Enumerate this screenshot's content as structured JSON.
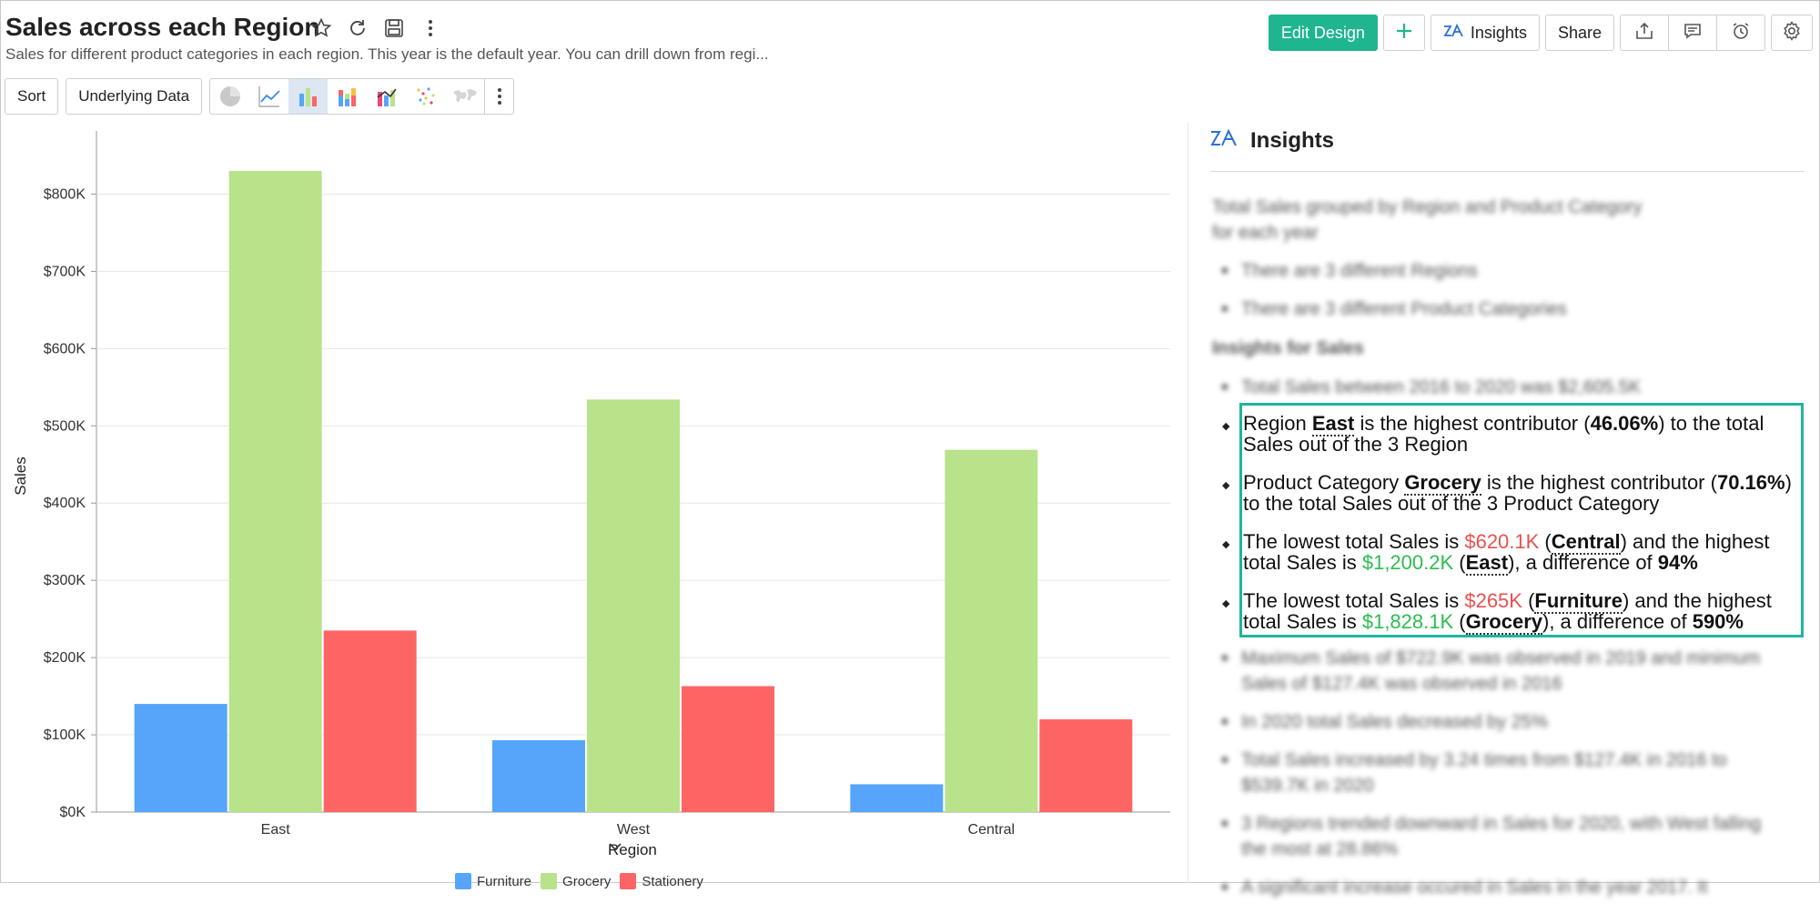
{
  "header": {
    "title": "Sales across each Region",
    "subtitle": "Sales for different product categories in each region. This year is the default year. You can drill down from regi...",
    "icons": [
      "star-icon",
      "refresh-icon",
      "save-icon",
      "more-vertical-icon"
    ]
  },
  "top_actions": {
    "edit_design": "Edit Design",
    "insights": "Insights",
    "share": "Share",
    "icons": [
      "plus-icon",
      "insights-icon",
      "export-icon",
      "comment-icon",
      "alarm-icon",
      "settings-icon"
    ]
  },
  "toolbar": {
    "sort": "Sort",
    "underlying_data": "Underlying Data",
    "chart_types": [
      "pie-chart-icon",
      "line-chart-icon",
      "bar-chart-icon",
      "stacked-bar-icon",
      "combo-chart-icon",
      "scatter-chart-icon",
      "map-chart-icon"
    ],
    "active_chart_type": "bar-chart-icon"
  },
  "chart_data": {
    "type": "bar",
    "categories": [
      "East",
      "West",
      "Central"
    ],
    "series": [
      {
        "name": "Furniture",
        "color": "#56a5fb",
        "values": [
          140000,
          93000,
          36000
        ]
      },
      {
        "name": "Grocery",
        "color": "#b8e38a",
        "values": [
          830000,
          534000,
          469000
        ]
      },
      {
        "name": "Stationery",
        "color": "#fd6565",
        "values": [
          235000,
          163000,
          120000
        ]
      }
    ],
    "xlabel": "Region",
    "ylabel": "Sales",
    "ylim": [
      0,
      870000
    ],
    "yticks": [
      0,
      100000,
      200000,
      300000,
      400000,
      500000,
      600000,
      700000,
      800000
    ],
    "ytick_labels": [
      "$0K",
      "$100K",
      "$200K",
      "$300K",
      "$400K",
      "$500K",
      "$600K",
      "$700K",
      "$800K"
    ],
    "grid": true,
    "legend": "bottom"
  },
  "insights": {
    "title": "Insights",
    "intro": "Total Sales grouped by Region and Product Category for each year",
    "summary": [
      "There are 3 different Regions",
      "There are 3 different Product Categories"
    ],
    "section_title": "Insights for Sales",
    "total_line": "Total Sales between 2016 to 2020 was $2,605.5K",
    "highlighted": {
      "i1": {
        "prefix": "Region ",
        "entity": "East",
        "mid": " is the highest contributor (",
        "pct": "46.06%",
        "suffix": ") to the total Sales out of the 3 Region"
      },
      "i2": {
        "prefix": "Product Category ",
        "entity": "Grocery",
        "mid": " is the highest contributor (",
        "pct": "70.16%",
        "suffix": ") to the total Sales out of the 3 Product Category"
      },
      "i3": {
        "prefix": "The lowest total Sales is ",
        "low_value": "$620.1K",
        "low_entity": "Central",
        "mid": ") and the highest total Sales is ",
        "high_value": "$1,200.2K",
        "high_entity": "East",
        "tail": "), a difference of ",
        "diff": "94%"
      },
      "i4": {
        "prefix": "The lowest total Sales is ",
        "low_value": "$265K",
        "low_entity": "Furniture",
        "mid": ") and the highest total Sales is ",
        "high_value": "$1,828.1K",
        "high_entity": "Grocery",
        "tail": "), a difference of ",
        "diff": "590%"
      }
    },
    "more": [
      "Maximum Sales of $722.9K was observed in 2019 and minimum Sales of $127.4K was observed in 2016",
      "In 2020 total Sales decreased by 25%",
      "Total Sales increased by 3.24 times from $127.4K in 2016 to $539.7K in 2020",
      "3 Regions trended downward in Sales for 2020, with West falling the most at 28.86%",
      "A significant increase occured in Sales in the year 2017. It"
    ]
  }
}
